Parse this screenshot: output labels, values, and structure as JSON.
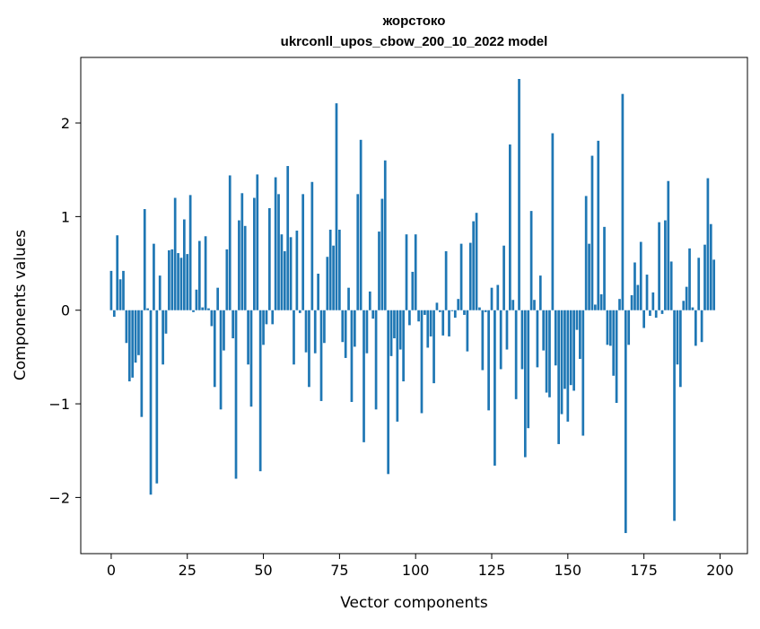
{
  "chart_data": {
    "type": "bar",
    "title": "жорстоко",
    "subtitle": "ukrconll_upos_cbow_200_10_2022 model",
    "xlabel": "Vector components",
    "ylabel": "Components values",
    "xlim": [
      -10,
      209
    ],
    "ylim": [
      -2.6,
      2.7
    ],
    "xticks": [
      0,
      25,
      50,
      75,
      100,
      125,
      150,
      175,
      200
    ],
    "yticks": [
      -2,
      -1,
      0,
      1,
      2
    ],
    "xtick_labels": [
      "0",
      "25",
      "50",
      "75",
      "100",
      "125",
      "150",
      "175",
      "200"
    ],
    "ytick_labels": [
      "−2",
      "−1",
      "0",
      "1",
      "2"
    ],
    "color": "#1f77b4",
    "grid": false,
    "x_start": 0,
    "values": [
      0.42,
      -0.07,
      0.8,
      0.33,
      0.42,
      -0.35,
      -0.76,
      -0.72,
      -0.56,
      -0.48,
      -1.14,
      1.08,
      0.02,
      -1.97,
      0.71,
      -1.85,
      0.37,
      -0.58,
      -0.25,
      0.64,
      0.65,
      1.2,
      0.61,
      0.56,
      0.97,
      0.6,
      1.23,
      -0.02,
      0.22,
      0.74,
      0.03,
      0.79,
      0.02,
      -0.17,
      -0.82,
      0.24,
      -1.06,
      -0.43,
      0.65,
      1.44,
      -0.3,
      -1.8,
      0.96,
      1.25,
      0.9,
      -0.58,
      -1.03,
      1.2,
      1.45,
      -1.72,
      -0.37,
      -0.15,
      1.09,
      -0.15,
      1.42,
      1.24,
      0.81,
      0.63,
      1.54,
      0.78,
      -0.58,
      0.85,
      -0.03,
      1.24,
      -0.45,
      -0.82,
      1.37,
      -0.46,
      0.39,
      -0.97,
      -0.35,
      0.57,
      0.86,
      0.69,
      2.21,
      0.86,
      -0.34,
      -0.51,
      0.24,
      -0.98,
      -0.39,
      1.24,
      1.82,
      -1.41,
      -0.46,
      0.2,
      -0.09,
      -1.06,
      0.84,
      1.19,
      1.6,
      -1.75,
      -0.49,
      -0.3,
      -1.19,
      -0.42,
      -0.76,
      0.81,
      -0.16,
      0.41,
      0.81,
      -0.12,
      -1.1,
      -0.05,
      -0.4,
      -0.28,
      -0.78,
      0.08,
      -0.02,
      -0.27,
      0.63,
      -0.28,
      -0.01,
      -0.08,
      0.12,
      0.71,
      -0.05,
      -0.44,
      0.72,
      0.95,
      1.04,
      0.03,
      -0.64,
      -0.02,
      -1.07,
      0.24,
      -1.66,
      0.27,
      -0.63,
      0.69,
      -0.42,
      1.77,
      0.11,
      -0.95,
      2.47,
      -0.63,
      -1.57,
      -1.26,
      1.06,
      0.11,
      -0.61,
      0.37,
      -0.43,
      -0.88,
      -0.93,
      1.89,
      -0.59,
      -1.43,
      -1.11,
      -0.84,
      -1.19,
      -0.8,
      -0.86,
      -0.21,
      -0.52,
      -1.34,
      1.22,
      0.71,
      1.65,
      0.06,
      1.81,
      0.17,
      0.89,
      -0.37,
      -0.38,
      -0.7,
      -0.99,
      0.12,
      2.31,
      -2.38,
      -0.37,
      0.16,
      0.51,
      0.27,
      0.73,
      -0.19,
      0.38,
      -0.06,
      0.19,
      -0.08,
      0.94,
      -0.04,
      0.96,
      1.38,
      0.52,
      -2.25,
      -0.58,
      -0.82,
      0.1,
      0.25,
      0.66,
      0.03,
      -0.38,
      0.56,
      -0.34,
      0.7,
      1.41,
      0.92,
      0.54
    ]
  }
}
